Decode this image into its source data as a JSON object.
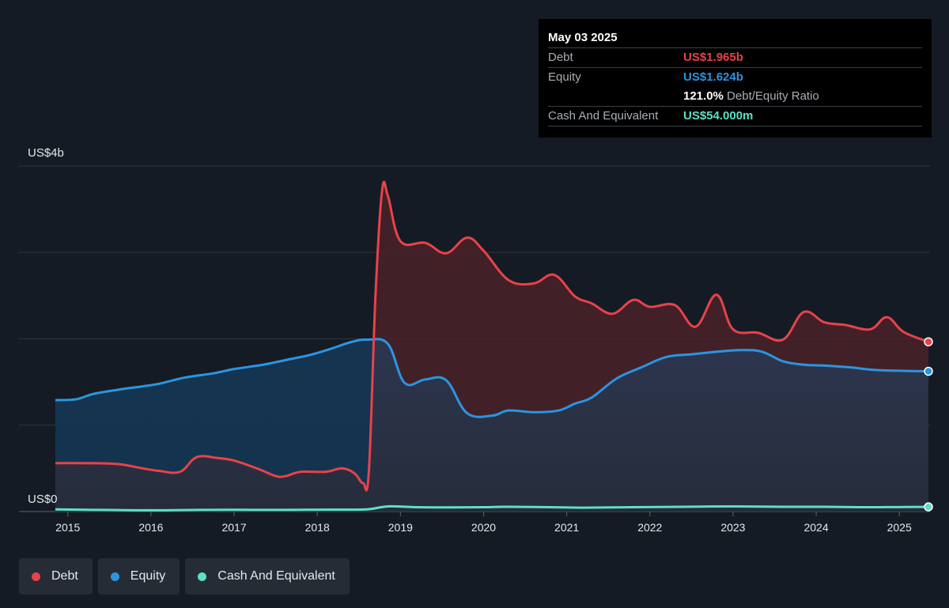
{
  "chart_data": {
    "type": "area",
    "y_axis_labels": {
      "top": "US$4b",
      "bottom": "US$0"
    },
    "ylim": [
      0,
      4
    ],
    "y_unit": "US$ billions",
    "x_ticks": [
      "2015",
      "2016",
      "2017",
      "2018",
      "2019",
      "2020",
      "2021",
      "2022",
      "2023",
      "2024",
      "2025"
    ],
    "grid": true,
    "legend_position": "bottom-left",
    "series": [
      {
        "name": "Debt",
        "color": "#e8424a",
        "points": [
          [
            2014.85,
            0.56
          ],
          [
            2015.25,
            0.56
          ],
          [
            2015.6,
            0.55
          ],
          [
            2015.9,
            0.5
          ],
          [
            2016.1,
            0.47
          ],
          [
            2016.35,
            0.46
          ],
          [
            2016.55,
            0.63
          ],
          [
            2016.8,
            0.62
          ],
          [
            2017.0,
            0.59
          ],
          [
            2017.3,
            0.49
          ],
          [
            2017.5,
            0.41
          ],
          [
            2017.62,
            0.41
          ],
          [
            2017.8,
            0.46
          ],
          [
            2018.1,
            0.46
          ],
          [
            2018.3,
            0.5
          ],
          [
            2018.45,
            0.44
          ],
          [
            2018.55,
            0.33
          ],
          [
            2018.62,
            0.46
          ],
          [
            2018.7,
            2.5
          ],
          [
            2018.78,
            3.72
          ],
          [
            2018.85,
            3.65
          ],
          [
            2019.0,
            3.13
          ],
          [
            2019.3,
            3.11
          ],
          [
            2019.55,
            2.99
          ],
          [
            2019.8,
            3.17
          ],
          [
            2020.0,
            3.02
          ],
          [
            2020.3,
            2.68
          ],
          [
            2020.6,
            2.64
          ],
          [
            2020.85,
            2.74
          ],
          [
            2021.1,
            2.49
          ],
          [
            2021.3,
            2.41
          ],
          [
            2021.55,
            2.29
          ],
          [
            2021.8,
            2.45
          ],
          [
            2022.0,
            2.37
          ],
          [
            2022.3,
            2.39
          ],
          [
            2022.55,
            2.14
          ],
          [
            2022.8,
            2.51
          ],
          [
            2023.0,
            2.11
          ],
          [
            2023.3,
            2.07
          ],
          [
            2023.6,
            1.99
          ],
          [
            2023.85,
            2.31
          ],
          [
            2024.1,
            2.19
          ],
          [
            2024.35,
            2.16
          ],
          [
            2024.65,
            2.11
          ],
          [
            2024.85,
            2.25
          ],
          [
            2025.05,
            2.08
          ],
          [
            2025.35,
            1.965
          ]
        ]
      },
      {
        "name": "Equity",
        "color": "#2b95e0",
        "points": [
          [
            2014.85,
            1.29
          ],
          [
            2015.1,
            1.3
          ],
          [
            2015.3,
            1.36
          ],
          [
            2015.6,
            1.41
          ],
          [
            2015.9,
            1.45
          ],
          [
            2016.1,
            1.48
          ],
          [
            2016.4,
            1.55
          ],
          [
            2016.75,
            1.6
          ],
          [
            2017.0,
            1.65
          ],
          [
            2017.35,
            1.7
          ],
          [
            2017.65,
            1.76
          ],
          [
            2017.9,
            1.81
          ],
          [
            2018.15,
            1.88
          ],
          [
            2018.4,
            1.96
          ],
          [
            2018.6,
            1.99
          ],
          [
            2018.85,
            1.94
          ],
          [
            2019.05,
            1.49
          ],
          [
            2019.3,
            1.53
          ],
          [
            2019.55,
            1.52
          ],
          [
            2019.8,
            1.14
          ],
          [
            2020.1,
            1.11
          ],
          [
            2020.3,
            1.17
          ],
          [
            2020.6,
            1.15
          ],
          [
            2020.9,
            1.17
          ],
          [
            2021.1,
            1.25
          ],
          [
            2021.3,
            1.32
          ],
          [
            2021.6,
            1.54
          ],
          [
            2021.9,
            1.67
          ],
          [
            2022.2,
            1.79
          ],
          [
            2022.5,
            1.82
          ],
          [
            2022.8,
            1.85
          ],
          [
            2023.1,
            1.87
          ],
          [
            2023.35,
            1.85
          ],
          [
            2023.6,
            1.74
          ],
          [
            2023.85,
            1.7
          ],
          [
            2024.1,
            1.69
          ],
          [
            2024.4,
            1.67
          ],
          [
            2024.7,
            1.64
          ],
          [
            2025.0,
            1.63
          ],
          [
            2025.35,
            1.624
          ]
        ]
      },
      {
        "name": "Cash And Equivalent",
        "color": "#5ce0c8",
        "points": [
          [
            2014.85,
            0.025
          ],
          [
            2015.3,
            0.02
          ],
          [
            2015.8,
            0.015
          ],
          [
            2016.2,
            0.015
          ],
          [
            2016.7,
            0.02
          ],
          [
            2017.2,
            0.02
          ],
          [
            2017.7,
            0.02
          ],
          [
            2018.2,
            0.022
          ],
          [
            2018.6,
            0.025
          ],
          [
            2018.85,
            0.06
          ],
          [
            2019.2,
            0.05
          ],
          [
            2019.6,
            0.048
          ],
          [
            2020.0,
            0.05
          ],
          [
            2020.3,
            0.055
          ],
          [
            2020.8,
            0.05
          ],
          [
            2021.2,
            0.045
          ],
          [
            2021.8,
            0.05
          ],
          [
            2022.4,
            0.055
          ],
          [
            2023.0,
            0.06
          ],
          [
            2023.6,
            0.055
          ],
          [
            2024.1,
            0.055
          ],
          [
            2024.6,
            0.05
          ],
          [
            2025.0,
            0.052
          ],
          [
            2025.35,
            0.054
          ]
        ]
      }
    ]
  },
  "tooltip": {
    "date": "May 03 2025",
    "debt_label": "Debt",
    "debt_value": "US$1.965b",
    "equity_label": "Equity",
    "equity_value": "US$1.624b",
    "ratio_value": "121.0%",
    "ratio_label": "Debt/Equity Ratio",
    "cash_label": "Cash And Equivalent",
    "cash_value": "US$54.000m"
  },
  "legend": [
    {
      "label": "Debt",
      "color": "#e8424a"
    },
    {
      "label": "Equity",
      "color": "#2b95e0"
    },
    {
      "label": "Cash And Equivalent",
      "color": "#5ce0c8"
    }
  ]
}
